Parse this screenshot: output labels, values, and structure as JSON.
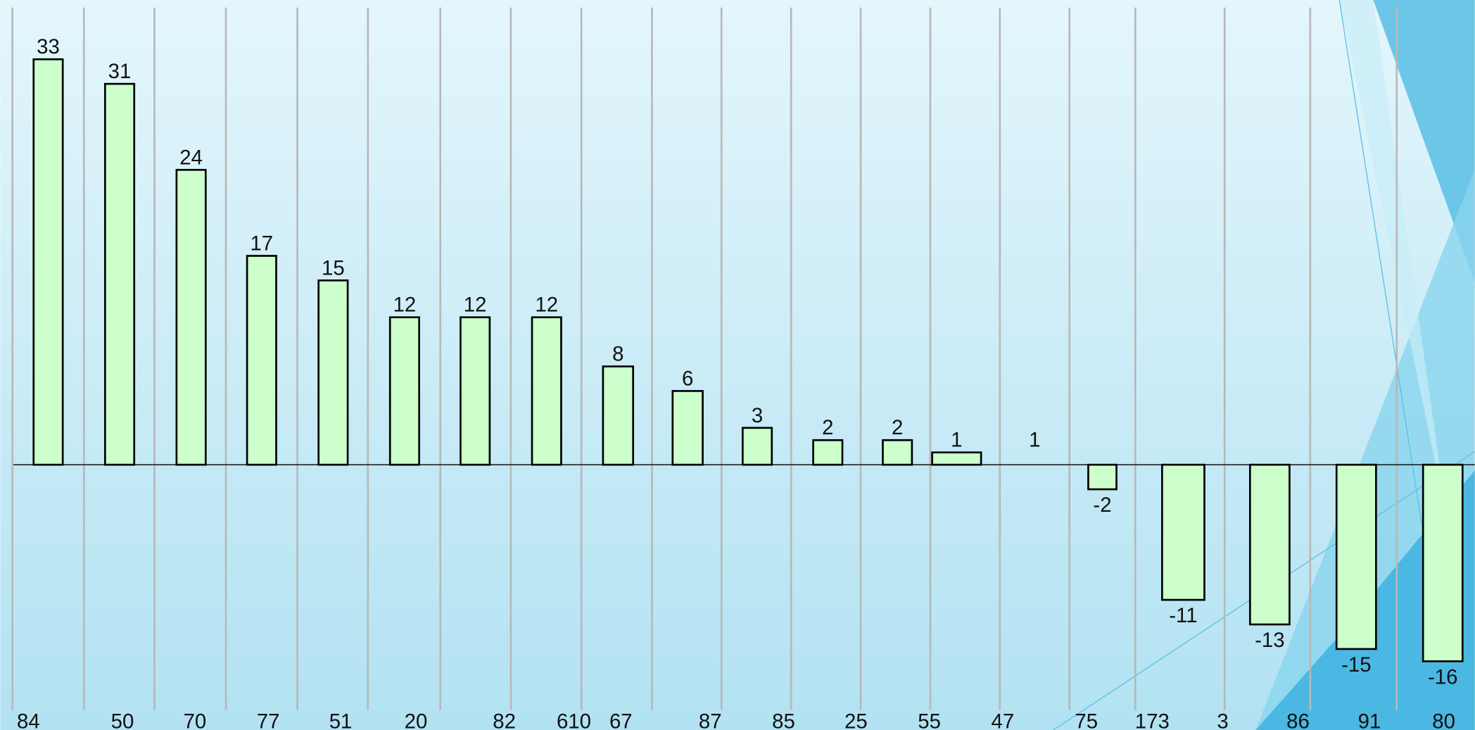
{
  "chart_data": {
    "type": "bar",
    "categories": [
      "84",
      "50",
      "70",
      "77",
      "51",
      "20",
      "82",
      "610",
      "67",
      "87",
      "85",
      "25",
      "55",
      "47",
      "75",
      "173",
      "3",
      "86",
      "91",
      "80"
    ],
    "values": [
      33,
      31,
      24,
      17,
      15,
      12,
      12,
      12,
      8,
      6,
      3,
      2,
      2,
      1,
      1,
      -2,
      -11,
      -13,
      -15,
      -16
    ],
    "color": "#ccffcc"
  }
}
